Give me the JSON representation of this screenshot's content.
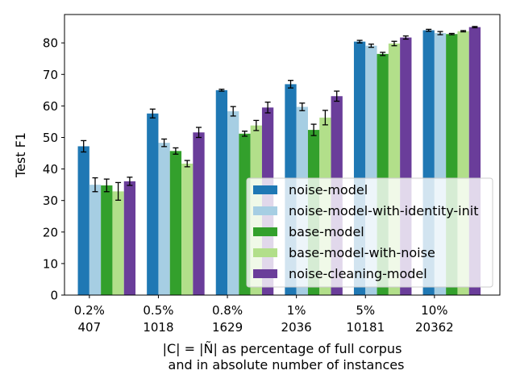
{
  "chart_data": {
    "type": "bar",
    "categories": [
      [
        "0.2%",
        "407"
      ],
      [
        "0.5%",
        "1018"
      ],
      [
        "0.8%",
        "1629"
      ],
      [
        "1%",
        "2036"
      ],
      [
        "5%",
        "10181"
      ],
      [
        "10%",
        "20362"
      ]
    ],
    "series": [
      {
        "name": "noise-model",
        "color": "#1f78b4",
        "values": [
          47.2,
          57.6,
          65.0,
          66.9,
          80.4,
          84.0
        ],
        "errors": [
          1.8,
          1.4,
          0.3,
          1.2,
          0.4,
          0.3
        ]
      },
      {
        "name": "noise-model-with-identity-init",
        "color": "#a6cee3",
        "values": [
          35.0,
          48.3,
          58.3,
          59.7,
          79.1,
          83.1
        ],
        "errors": [
          2.2,
          1.2,
          1.5,
          1.2,
          0.5,
          0.5
        ]
      },
      {
        "name": "base-model",
        "color": "#33a02c",
        "values": [
          34.8,
          45.7,
          51.2,
          52.4,
          76.5,
          82.8
        ],
        "errors": [
          2.0,
          1.0,
          0.8,
          1.8,
          0.5,
          0.2
        ]
      },
      {
        "name": "base-model-with-noise",
        "color": "#b2df8a",
        "values": [
          32.9,
          41.7,
          53.8,
          56.3,
          79.8,
          83.7
        ],
        "errors": [
          2.8,
          1.0,
          1.6,
          2.3,
          0.7,
          0.2
        ]
      },
      {
        "name": "noise-cleaning-model",
        "color": "#6a3d9a",
        "values": [
          36.1,
          51.6,
          59.5,
          63.1,
          81.7,
          85.0
        ],
        "errors": [
          1.3,
          1.6,
          1.7,
          1.6,
          0.5,
          0.2
        ]
      }
    ],
    "ylabel": "Test F1",
    "xlabel": [
      "|C| = |Ñ| as percentage of full corpus",
      "and in absolute number of instances"
    ],
    "ylim": [
      0,
      89
    ],
    "yticks": [
      0,
      10,
      20,
      30,
      40,
      50,
      60,
      70,
      80
    ],
    "legend_position": "lower-right",
    "grid": false
  }
}
